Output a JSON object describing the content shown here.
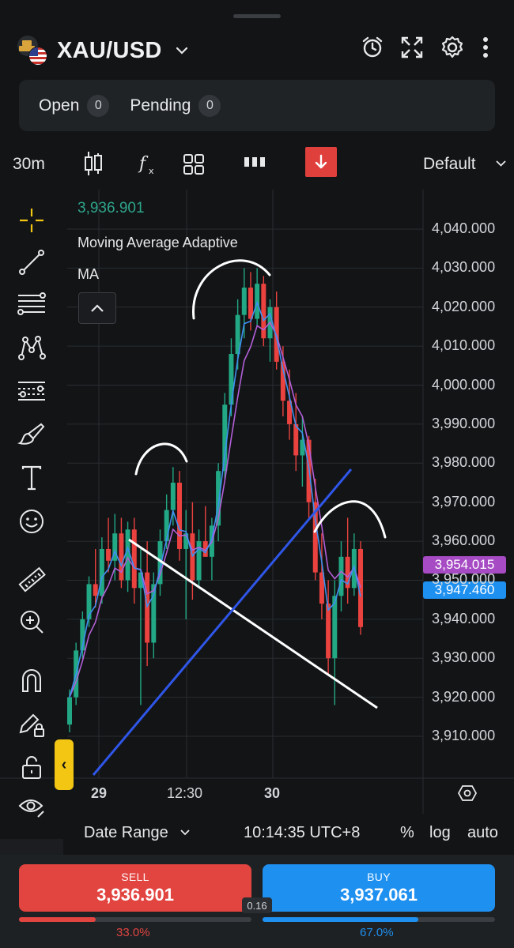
{
  "header": {
    "symbol": "XAU/USD",
    "icons": [
      "alarm-clock-icon",
      "fullscreen-icon",
      "gear-icon",
      "more-vertical-icon"
    ]
  },
  "orders": {
    "tabs": [
      {
        "label": "Open",
        "count": "0"
      },
      {
        "label": "Pending",
        "count": "0"
      }
    ]
  },
  "toolbar": {
    "timeframe": "30m",
    "icons": [
      "candlestick-icon",
      "indicator-fx-icon",
      "layout-grid-icon",
      "bar-style-icon",
      "order-arrow-icon"
    ],
    "layout": "Default"
  },
  "tools": [
    "crosshair-icon",
    "trendline-icon",
    "fib-lines-icon",
    "pattern-icon",
    "measure-lines-icon",
    "brush-icon",
    "text-icon",
    "emoji-icon",
    "ruler-icon",
    "zoom-in-icon",
    "magnet-icon",
    "pencil-lock-icon",
    "lock-icon",
    "eye-icon"
  ],
  "legend": {
    "price": "3,936.901",
    "indicator": "Moving Average Adaptive",
    "ma": "MA"
  },
  "chart_data": {
    "type": "candlestick",
    "y_ticks": [
      "4,040.000",
      "4,030.000",
      "4,020.000",
      "4,010.000",
      "4,000.000",
      "3,990.000",
      "3,980.000",
      "3,970.000",
      "3,960.000",
      "3,950.000",
      "3,940.000",
      "3,930.000",
      "3,920.000",
      "3,910.000"
    ],
    "ylim": [
      3904,
      4045
    ],
    "x_labels": [
      "29",
      "12:30",
      "30"
    ],
    "price_tags": [
      {
        "value": "3,954.015",
        "color": "#a64bc4"
      },
      {
        "value": "3,947.460",
        "color": "#1e90f0"
      }
    ],
    "candles_ohlc": [
      [
        3913,
        3922,
        3911,
        3920
      ],
      [
        3920,
        3934,
        3918,
        3932
      ],
      [
        3932,
        3942,
        3930,
        3940
      ],
      [
        3940,
        3951,
        3938,
        3949
      ],
      [
        3949,
        3958,
        3943,
        3946
      ],
      [
        3946,
        3961,
        3944,
        3958
      ],
      [
        3958,
        3966,
        3952,
        3955
      ],
      [
        3955,
        3967,
        3950,
        3962
      ],
      [
        3962,
        3966,
        3948,
        3950
      ],
      [
        3950,
        3965,
        3947,
        3963
      ],
      [
        3963,
        3966,
        3944,
        3948
      ],
      [
        3948,
        3958,
        3918,
        3952
      ],
      [
        3952,
        3960,
        3928,
        3934
      ],
      [
        3934,
        3952,
        3930,
        3949
      ],
      [
        3949,
        3963,
        3946,
        3960
      ],
      [
        3960,
        3972,
        3958,
        3968
      ],
      [
        3968,
        3979,
        3964,
        3975
      ],
      [
        3975,
        3978,
        3955,
        3958
      ],
      [
        3958,
        3968,
        3940,
        3962
      ],
      [
        3962,
        3970,
        3945,
        3950
      ],
      [
        3950,
        3963,
        3948,
        3960
      ],
      [
        3960,
        3969,
        3956,
        3956
      ],
      [
        3956,
        3966,
        3950,
        3964
      ],
      [
        3964,
        3980,
        3960,
        3978
      ],
      [
        3978,
        3998,
        3976,
        3995
      ],
      [
        3995,
        4012,
        3992,
        4008
      ],
      [
        4008,
        4022,
        4004,
        4018
      ],
      [
        4018,
        4030,
        4012,
        4025
      ],
      [
        4025,
        4029,
        4014,
        4017
      ],
      [
        4017,
        4030,
        4015,
        4026
      ],
      [
        4026,
        4028,
        4010,
        4012
      ],
      [
        4012,
        4022,
        4006,
        4020
      ],
      [
        4020,
        4024,
        4004,
        4006
      ],
      [
        4006,
        4010,
        3992,
        3996
      ],
      [
        3996,
        4004,
        3986,
        3990
      ],
      [
        3990,
        3998,
        3978,
        3982
      ],
      [
        3982,
        3992,
        3974,
        3986
      ],
      [
        3986,
        3987,
        3966,
        3970
      ],
      [
        3970,
        3976,
        3950,
        3952
      ],
      [
        3952,
        3962,
        3940,
        3944
      ],
      [
        3944,
        3950,
        3926,
        3930
      ],
      [
        3930,
        3950,
        3918,
        3946
      ],
      [
        3946,
        3960,
        3942,
        3956
      ],
      [
        3956,
        3966,
        3944,
        3948
      ],
      [
        3948,
        3962,
        3946,
        3958
      ],
      [
        3958,
        3960,
        3936,
        3938
      ]
    ],
    "drawings": [
      {
        "name": "white-trendline",
        "color": "#ffffff"
      },
      {
        "name": "blue-trendline",
        "color": "#2f56e8"
      }
    ]
  },
  "footer": {
    "date_range": "Date Range",
    "clock": "10:14:35 UTC+8",
    "percent": "%",
    "log": "log",
    "auto": "auto"
  },
  "trade": {
    "sell_label": "SELL",
    "sell_price": "3,936.901",
    "buy_label": "BUY",
    "buy_price": "3,937.061",
    "spread": "0.16",
    "sell_pct": "33.0%",
    "buy_pct": "67.0%",
    "sell_ratio": 0.33,
    "buy_ratio": 0.67,
    "sell_color": "#e24440",
    "buy_color": "#1e90f0"
  }
}
